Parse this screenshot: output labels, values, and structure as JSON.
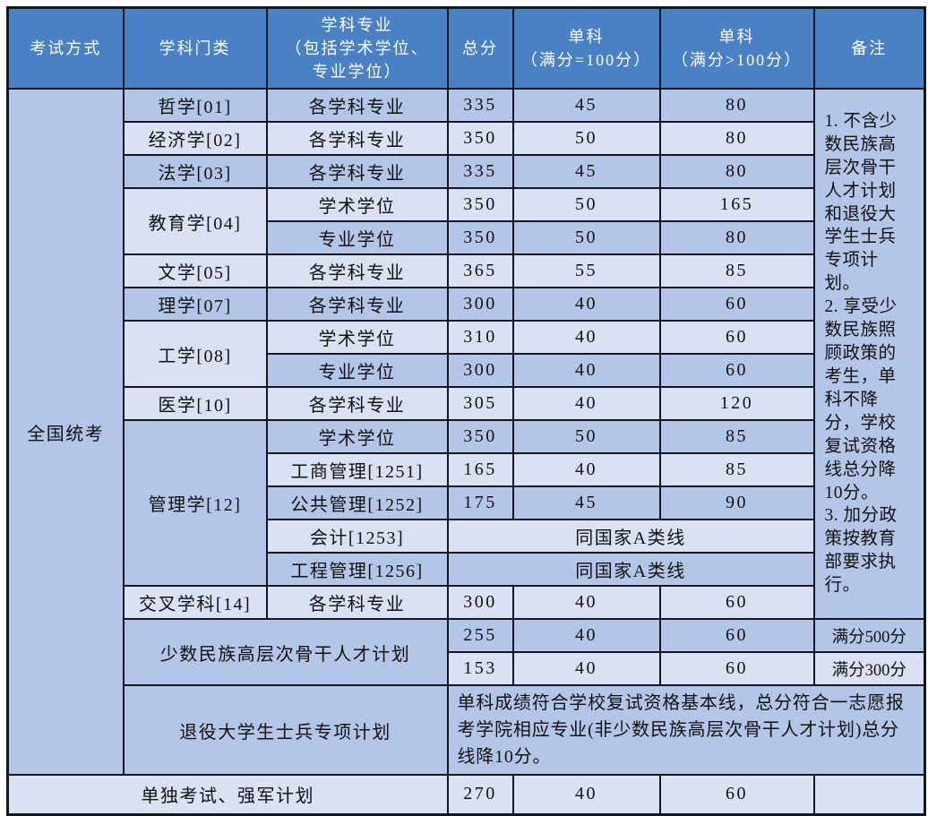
{
  "header": {
    "exam_method": "考试方式",
    "category": "学科门类",
    "major": "学科专业\n（包括学术学位、\n专业学位）",
    "total": "总分",
    "single_eq100": "单科\n（满分=100分）",
    "single_gt100": "单科\n（满分>100分）",
    "remark": "备注"
  },
  "exam_method": "全国统考",
  "rows": [
    {
      "category": "哲学[01]",
      "major": "各学科专业",
      "total": "335",
      "single100": "45",
      "singleGt": "80"
    },
    {
      "category": "经济学[02]",
      "major": "各学科专业",
      "total": "350",
      "single100": "50",
      "singleGt": "80"
    },
    {
      "category": "法学[03]",
      "major": "各学科专业",
      "total": "335",
      "single100": "45",
      "singleGt": "80"
    },
    {
      "category": "教育学[04]",
      "major": "学术学位",
      "total": "350",
      "single100": "50",
      "singleGt": "165"
    },
    {
      "major": "专业学位",
      "total": "350",
      "single100": "50",
      "singleGt": "80"
    },
    {
      "category": "文学[05]",
      "major": "各学科专业",
      "total": "365",
      "single100": "55",
      "singleGt": "85"
    },
    {
      "category": "理学[07]",
      "major": "各学科专业",
      "total": "300",
      "single100": "40",
      "singleGt": "60"
    },
    {
      "category": "工学[08]",
      "major": "学术学位",
      "total": "310",
      "single100": "40",
      "singleGt": "60"
    },
    {
      "major": "专业学位",
      "total": "300",
      "single100": "40",
      "singleGt": "60"
    },
    {
      "category": "医学[10]",
      "major": "各学科专业",
      "total": "305",
      "single100": "40",
      "singleGt": "120"
    },
    {
      "category": "管理学[12]",
      "major": "学术学位",
      "total": "350",
      "single100": "50",
      "singleGt": "85"
    },
    {
      "major": "工商管理[1251]",
      "total": "165",
      "single100": "40",
      "singleGt": "85"
    },
    {
      "major": "公共管理[1252]",
      "total": "175",
      "single100": "45",
      "singleGt": "90"
    },
    {
      "major": "会计[1253]",
      "span": "同国家A类线"
    },
    {
      "major": "工程管理[1256]",
      "span": "同国家A类线"
    },
    {
      "category": "交叉学科[14]",
      "major": "各学科专业",
      "total": "300",
      "single100": "40",
      "singleGt": "60"
    }
  ],
  "remark_main": "1. 不含少数民族高层次骨干人才计划和退役大学生士兵专项计划。\n2. 享受少数民族照顾政策的考生，单科不降分，学校复试资格线总分降10分。\n3. 加分政策按教育部要求执行。",
  "minority": {
    "label": "少数民族高层次骨干人才计划",
    "rows": [
      {
        "total": "255",
        "single100": "40",
        "singleGt": "60",
        "remark": "满分500分"
      },
      {
        "total": "153",
        "single100": "40",
        "singleGt": "60",
        "remark": "满分300分"
      }
    ]
  },
  "veteran": {
    "label": "退役大学生士兵专项计划",
    "note": "单科成绩符合学校复试资格基本线，总分符合一志愿报考学院相应专业(非少数民族高层次骨干人才计划)总分线降10分。"
  },
  "separate": {
    "label": "单独考试、强军计划",
    "total": "270",
    "single100": "40",
    "singleGt": "60",
    "remark": ""
  },
  "colors": {
    "header_bg": "#4a80c4",
    "header_text": "#ffffff",
    "band_dark": "#b4c6e7",
    "band_light": "#d9e1f2",
    "border": "#14161f",
    "body_text": "#111111"
  }
}
